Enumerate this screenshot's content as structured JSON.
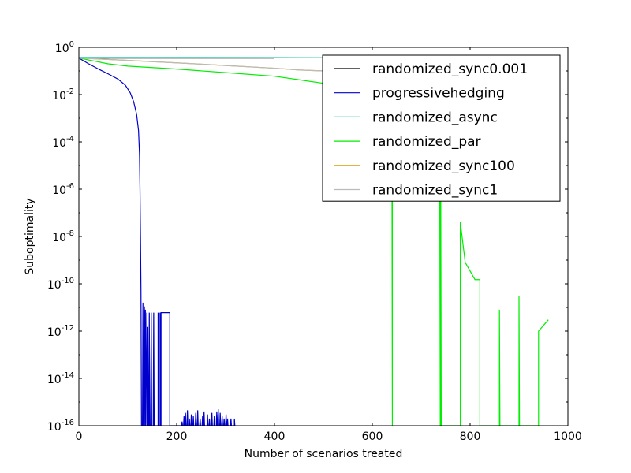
{
  "chart_data": {
    "type": "line",
    "xlabel": "Number of scenarios treated",
    "ylabel": "Suboptimality",
    "xlim": [
      0,
      1000
    ],
    "ylim_log10": [
      -16,
      0
    ],
    "y_scale": "log",
    "grid": false,
    "legend_position": "upper-right",
    "x_ticks": [
      {
        "value": 0,
        "label": "0"
      },
      {
        "value": 200,
        "label": "200"
      },
      {
        "value": 400,
        "label": "400"
      },
      {
        "value": 600,
        "label": "600"
      },
      {
        "value": 800,
        "label": "800"
      },
      {
        "value": 1000,
        "label": "1000"
      }
    ],
    "y_ticks": [
      {
        "exp": 0,
        "base": "10",
        "sup": "0"
      },
      {
        "exp": -2,
        "base": "10",
        "sup": "-2"
      },
      {
        "exp": -4,
        "base": "10",
        "sup": "-4"
      },
      {
        "exp": -6,
        "base": "10",
        "sup": "-6"
      },
      {
        "exp": -8,
        "base": "10",
        "sup": "-8"
      },
      {
        "exp": -10,
        "base": "10",
        "sup": "-10"
      },
      {
        "exp": -12,
        "base": "10",
        "sup": "-12"
      },
      {
        "exp": -14,
        "base": "10",
        "sup": "-14"
      },
      {
        "exp": -16,
        "base": "10",
        "sup": "-16"
      }
    ],
    "series": [
      {
        "name": "randomized_sync0.001",
        "color": "#000000",
        "points": [
          [
            0,
            0.35
          ],
          [
            400,
            0.35
          ]
        ]
      },
      {
        "name": "progressivehedging",
        "color": "#0000cc",
        "points": [
          [
            0,
            0.35
          ],
          [
            20,
            0.2
          ],
          [
            40,
            0.12
          ],
          [
            60,
            0.075
          ],
          [
            80,
            0.045
          ],
          [
            95,
            0.025
          ],
          [
            105,
            0.012
          ],
          [
            112,
            0.005
          ],
          [
            118,
            0.0015
          ],
          [
            122,
            0.0003
          ],
          [
            124,
            3e-05
          ],
          [
            125,
            1e-06
          ],
          [
            126,
            1e-08
          ],
          [
            127,
            5e-11
          ],
          [
            128,
            1e-16
          ],
          [
            130,
            1e-16
          ],
          [
            131,
            1.6e-11
          ],
          [
            132,
            1e-16
          ],
          [
            134,
            1.1e-11
          ],
          [
            135,
            1e-16
          ],
          [
            136,
            8e-12
          ],
          [
            137,
            1e-16
          ],
          [
            139,
            6e-12
          ],
          [
            140,
            1e-16
          ],
          [
            141,
            1e-16
          ],
          [
            141,
            1.5e-12
          ],
          [
            142,
            1e-16
          ],
          [
            143,
            1e-16
          ],
          [
            144,
            6e-12
          ],
          [
            145,
            1e-16
          ],
          [
            147,
            1e-16
          ],
          [
            148,
            6e-12
          ],
          [
            149,
            1e-16
          ],
          [
            152,
            1e-16
          ],
          [
            153,
            6e-12
          ],
          [
            154,
            1e-16
          ],
          [
            162,
            1e-16
          ],
          [
            162,
            6e-12
          ],
          [
            163,
            1e-16
          ],
          [
            166,
            1e-16
          ],
          [
            166,
            6e-12
          ],
          [
            167,
            1e-16
          ],
          [
            168,
            1e-16
          ],
          [
            168,
            6e-12
          ],
          [
            186,
            6e-12
          ],
          [
            186,
            1e-16
          ],
          [
            210,
            1e-16
          ],
          [
            211,
            1.5e-16
          ],
          [
            212,
            1e-16
          ],
          [
            214,
            1e-16
          ],
          [
            215,
            2.5e-16
          ],
          [
            216,
            1e-16
          ],
          [
            217,
            1e-16
          ],
          [
            218,
            3.5e-16
          ],
          [
            219,
            1e-16
          ],
          [
            221,
            1e-16
          ],
          [
            222,
            4.5e-16
          ],
          [
            223,
            1e-16
          ],
          [
            225,
            1e-16
          ],
          [
            226,
            2e-16
          ],
          [
            227,
            1e-16
          ],
          [
            229,
            1e-16
          ],
          [
            230,
            3e-16
          ],
          [
            231,
            1e-16
          ],
          [
            233,
            1e-16
          ],
          [
            234,
            2.5e-16
          ],
          [
            235,
            1e-16
          ],
          [
            238,
            1e-16
          ],
          [
            239,
            3.5e-16
          ],
          [
            240,
            1e-16
          ],
          [
            242,
            1e-16
          ],
          [
            243,
            4.5e-16
          ],
          [
            244,
            1e-16
          ],
          [
            247,
            1e-16
          ],
          [
            248,
            2e-16
          ],
          [
            249,
            1e-16
          ],
          [
            252,
            1e-16
          ],
          [
            253,
            2.5e-16
          ],
          [
            254,
            1e-16
          ],
          [
            255,
            1e-16
          ],
          [
            256,
            4e-16
          ],
          [
            257,
            1e-16
          ],
          [
            262,
            1e-16
          ],
          [
            263,
            3e-16
          ],
          [
            264,
            1e-16
          ],
          [
            266,
            1e-16
          ],
          [
            267,
            2e-16
          ],
          [
            268,
            1e-16
          ],
          [
            271,
            1e-16
          ],
          [
            272,
            3.5e-16
          ],
          [
            273,
            1e-16
          ],
          [
            276,
            1e-16
          ],
          [
            277,
            2.5e-16
          ],
          [
            278,
            1e-16
          ],
          [
            281,
            1e-16
          ],
          [
            282,
            4e-16
          ],
          [
            283,
            1e-16
          ],
          [
            284,
            1e-16
          ],
          [
            285,
            5e-16
          ],
          [
            286,
            1e-16
          ],
          [
            288,
            1e-16
          ],
          [
            289,
            3.5e-16
          ],
          [
            290,
            1e-16
          ],
          [
            292,
            1e-16
          ],
          [
            293,
            2.5e-16
          ],
          [
            294,
            1e-16
          ],
          [
            296,
            1e-16
          ],
          [
            297,
            2e-16
          ],
          [
            298,
            1e-16
          ],
          [
            300,
            1e-16
          ],
          [
            301,
            3e-16
          ],
          [
            302,
            1e-16
          ],
          [
            303,
            1e-16
          ],
          [
            304,
            2e-16
          ],
          [
            305,
            1e-16
          ],
          [
            310,
            1e-16
          ],
          [
            311,
            2e-16
          ],
          [
            312,
            1e-16
          ],
          [
            318,
            1e-16
          ],
          [
            318,
            2e-16
          ],
          [
            319,
            1e-16
          ]
        ]
      },
      {
        "name": "randomized_async",
        "color": "#00bb99",
        "points": [
          [
            0,
            0.37
          ],
          [
            200,
            0.37
          ],
          [
            400,
            0.365
          ],
          [
            600,
            0.36
          ],
          [
            800,
            0.36
          ]
        ]
      },
      {
        "name": "randomized_par",
        "color": "#00ee00",
        "points": [
          [
            0,
            0.35
          ],
          [
            60,
            0.2
          ],
          [
            100,
            0.16
          ],
          [
            200,
            0.12
          ],
          [
            300,
            0.085
          ],
          [
            400,
            0.06
          ],
          [
            500,
            0.03
          ],
          [
            600,
            0.012
          ],
          [
            640,
            0.008
          ],
          [
            641,
            1e-16
          ],
          [
            641,
            1e-06
          ],
          [
            660,
            1e-06
          ],
          [
            738,
            1e-06
          ],
          [
            739,
            1e-16
          ],
          [
            740,
            1e-16
          ],
          [
            740,
            1e-06
          ],
          [
            741,
            1e-16
          ],
          [
            780,
            1e-16
          ],
          [
            780,
            4e-08
          ],
          [
            790,
            8e-10
          ],
          [
            810,
            1.5e-10
          ],
          [
            820,
            1.5e-10
          ],
          [
            820,
            1e-16
          ],
          [
            860,
            1e-16
          ],
          [
            860,
            8e-12
          ],
          [
            861,
            1e-16
          ],
          [
            900,
            1e-16
          ],
          [
            900,
            3e-11
          ],
          [
            901,
            1e-16
          ],
          [
            940,
            1e-16
          ],
          [
            940,
            1e-12
          ],
          [
            960,
            3e-12
          ]
        ]
      },
      {
        "name": "randomized_sync100",
        "color": "#dd9900",
        "points": [
          [
            0,
            0.35
          ],
          [
            100,
            0.28
          ],
          [
            200,
            0.22
          ],
          [
            300,
            0.17
          ],
          [
            400,
            0.13
          ],
          [
            450,
            0.11
          ],
          [
            500,
            0.1
          ],
          [
            520,
            0.1
          ]
        ]
      },
      {
        "name": "randomized_sync1",
        "color": "#bbbbbb",
        "points": [
          [
            0,
            0.35
          ],
          [
            100,
            0.28
          ],
          [
            200,
            0.22
          ],
          [
            300,
            0.17
          ],
          [
            400,
            0.13
          ],
          [
            450,
            0.11
          ],
          [
            500,
            0.1
          ],
          [
            520,
            0.1
          ]
        ]
      }
    ]
  }
}
